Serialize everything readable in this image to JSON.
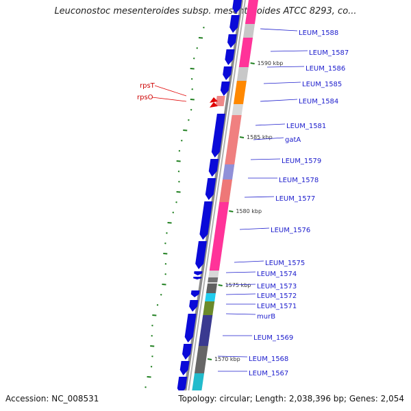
{
  "title": "Leuconostoc mesenteroides subsp. mesenteroides ATCC 8293, co...",
  "footer": {
    "accession": "Accession: NC_008531",
    "stats": "Topology: circular; Length: 2,038,396 bp; Genes: 2,054"
  },
  "colors": {
    "forward_cds": "#0a0ad8",
    "trna": "#e00000",
    "backbone": "#8c8c8c",
    "gene_label": "#1a1acc",
    "rna_label": "#cc0000",
    "tick": "#1f7f1f"
  },
  "scale_ticks": [
    "1590 kbp",
    "1585 kbp",
    "1580 kbp",
    "1575 kbp",
    "1570 kbp"
  ],
  "gene_labels": [
    "LEUM_1588",
    "LEUM_1587",
    "LEUM_1586",
    "LEUM_1585",
    "LEUM_1584",
    "LEUM_1581",
    "gatA",
    "LEUM_1579",
    "LEUM_1578",
    "LEUM_1577",
    "LEUM_1576",
    "LEUM_1575",
    "LEUM_1574",
    "LEUM_1573",
    "LEUM_1572",
    "LEUM_1571",
    "murB",
    "LEUM_1569",
    "LEUM_1568",
    "LEUM_1567"
  ],
  "rna_labels": [
    "rpsT",
    "rpsO"
  ]
}
